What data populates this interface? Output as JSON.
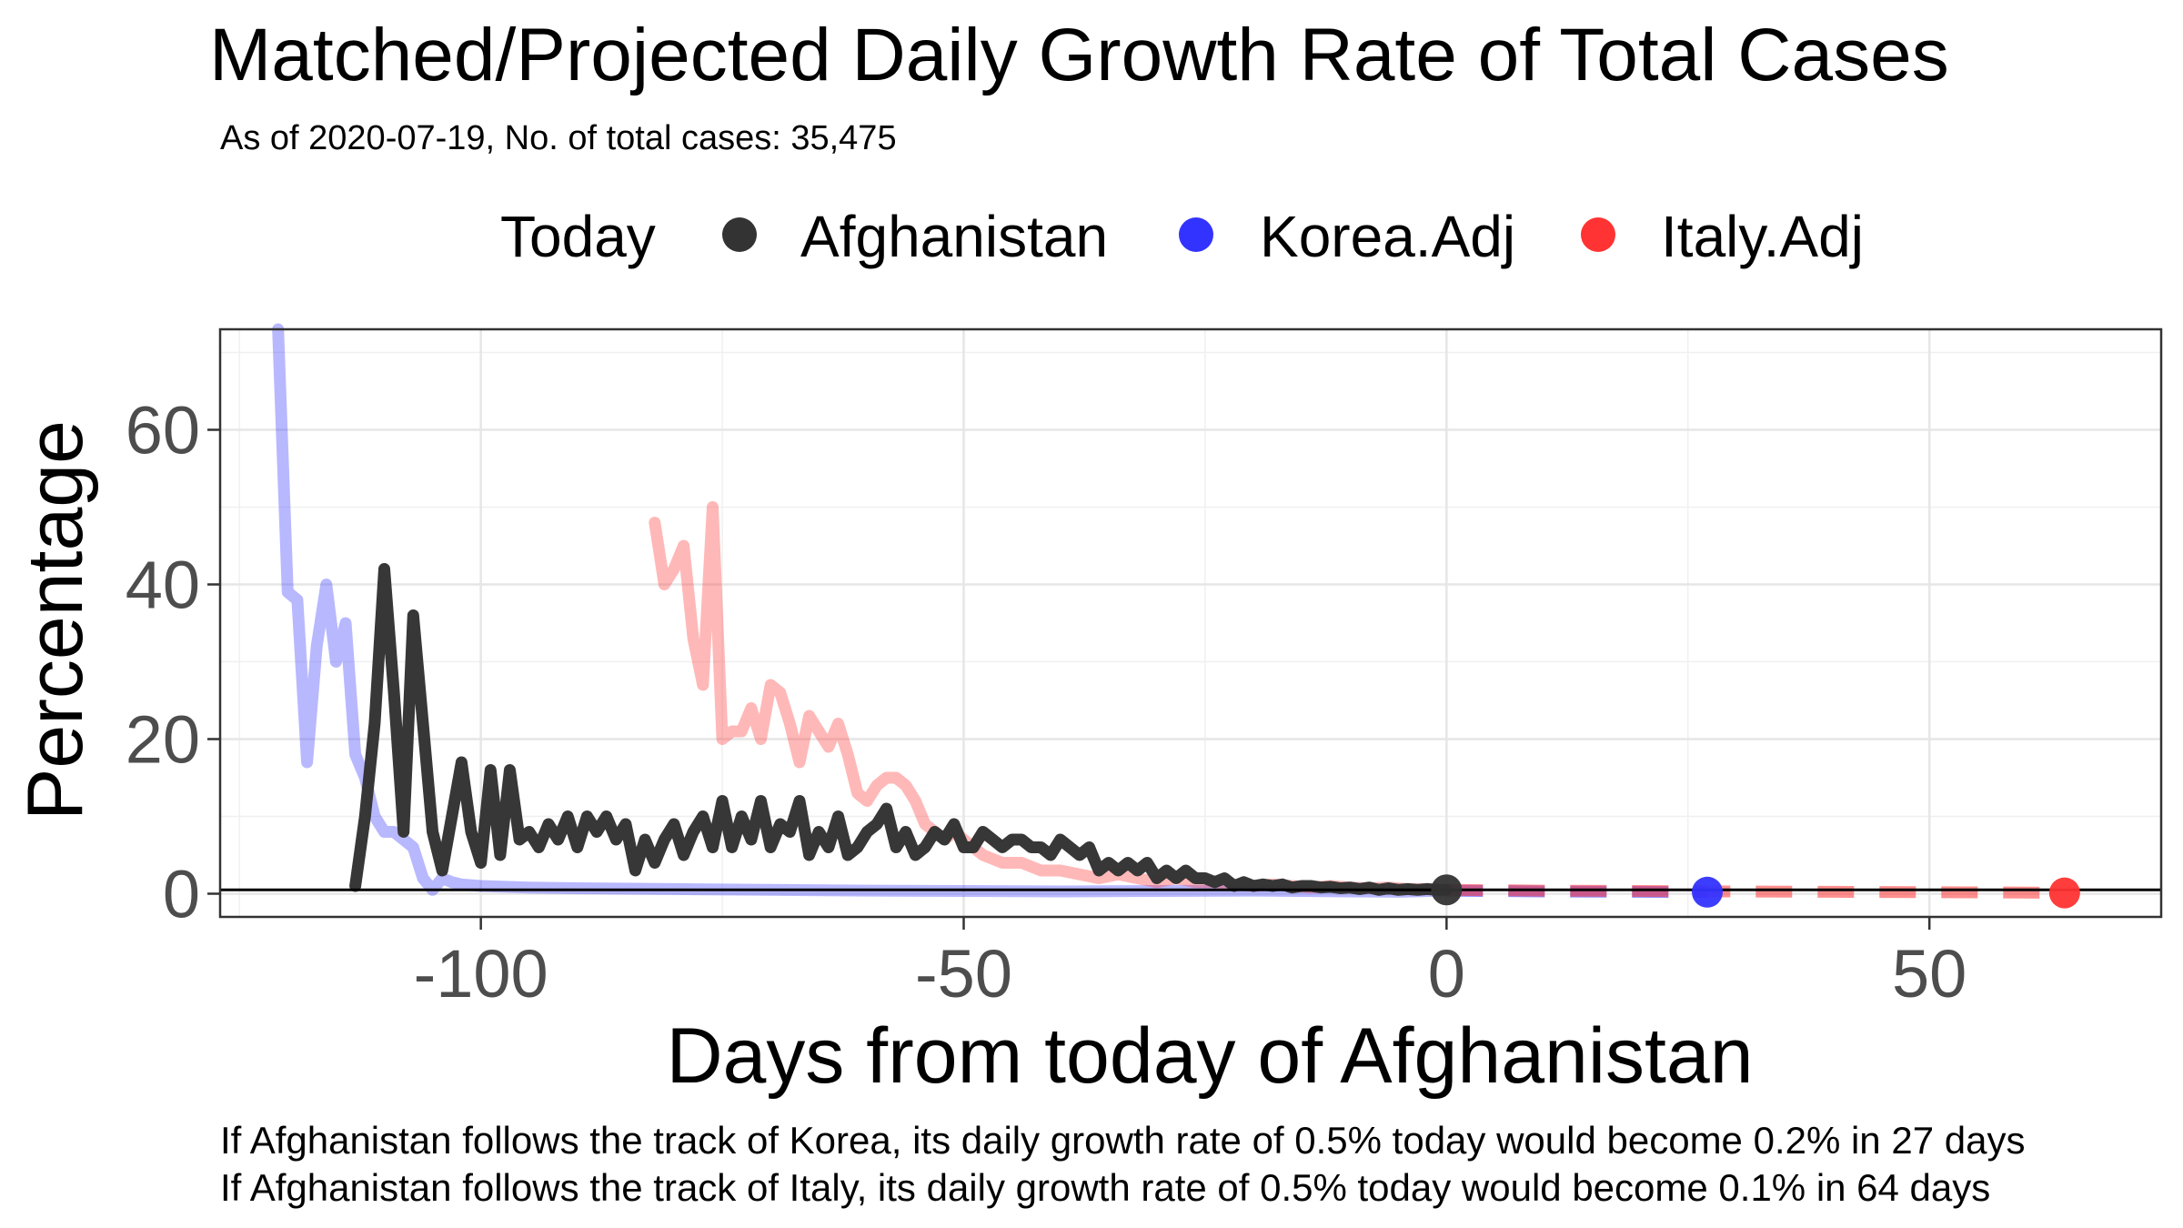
{
  "chart_data": {
    "type": "line",
    "title": "Matched/Projected Daily Growth Rate of Total Cases",
    "subtitle": "As of 2020-07-19, No. of total cases: 35,475",
    "xlabel": "Days from today of Afghanistan",
    "ylabel": "Percentage",
    "xlim": [
      -127,
      74
    ],
    "ylim": [
      -3,
      73
    ],
    "x_ticks": [
      -100,
      -50,
      0,
      50
    ],
    "x_tick_labels": [
      "-100",
      "-50",
      "0",
      "50"
    ],
    "y_ticks": [
      0,
      20,
      40,
      60
    ],
    "y_tick_labels": [
      "0",
      "20",
      "40",
      "60"
    ],
    "grid": true,
    "reference_line_y": 0.5,
    "legend": {
      "position": "top",
      "title": "Today",
      "entries": [
        {
          "name": "Afghanistan",
          "color": "#333333"
        },
        {
          "name": "Korea.Adj",
          "color": "#3333ff"
        },
        {
          "name": "Italy.Adj",
          "color": "#ff3333"
        }
      ]
    },
    "series": [
      {
        "name": "Korea.Adj",
        "color": "#3333ff",
        "points": [
          [
            -121,
            73
          ],
          [
            -120,
            39
          ],
          [
            -119,
            38
          ],
          [
            -118,
            17
          ],
          [
            -117,
            32
          ],
          [
            -116,
            40
          ],
          [
            -115,
            30
          ],
          [
            -114,
            35
          ],
          [
            -113,
            18
          ],
          [
            -112,
            15
          ],
          [
            -111,
            10
          ],
          [
            -110,
            8
          ],
          [
            -109,
            8
          ],
          [
            -108,
            7
          ],
          [
            -107,
            6
          ],
          [
            -106,
            2
          ],
          [
            -105,
            0.5
          ],
          [
            -104,
            2
          ],
          [
            -103,
            1.5
          ],
          [
            -102,
            1.2
          ],
          [
            -100,
            1
          ],
          [
            -95,
            0.8
          ],
          [
            -90,
            0.7
          ],
          [
            -80,
            0.6
          ],
          [
            -70,
            0.5
          ],
          [
            -60,
            0.4
          ],
          [
            -50,
            0.35
          ],
          [
            -40,
            0.3
          ],
          [
            -30,
            0.35
          ],
          [
            -20,
            0.4
          ],
          [
            -10,
            0.3
          ],
          [
            -5,
            0.25
          ],
          [
            0,
            0.4
          ],
          [
            10,
            0.3
          ],
          [
            20,
            0.25
          ],
          [
            27,
            0.2
          ]
        ],
        "projected_from_x": 0
      },
      {
        "name": "Italy.Adj",
        "color": "#ff3333",
        "points": [
          [
            -82,
            48
          ],
          [
            -81,
            40
          ],
          [
            -80,
            42
          ],
          [
            -79,
            45
          ],
          [
            -78,
            33
          ],
          [
            -77,
            27
          ],
          [
            -76,
            50
          ],
          [
            -75,
            20
          ],
          [
            -74,
            21
          ],
          [
            -73,
            21
          ],
          [
            -72,
            24
          ],
          [
            -71,
            20
          ],
          [
            -70,
            27
          ],
          [
            -69,
            26
          ],
          [
            -68,
            22
          ],
          [
            -67,
            17
          ],
          [
            -66,
            23
          ],
          [
            -65,
            21
          ],
          [
            -64,
            19
          ],
          [
            -63,
            22
          ],
          [
            -62,
            18
          ],
          [
            -61,
            13
          ],
          [
            -60,
            12
          ],
          [
            -59,
            14
          ],
          [
            -58,
            15
          ],
          [
            -57,
            15
          ],
          [
            -56,
            14
          ],
          [
            -55,
            12
          ],
          [
            -54,
            9
          ],
          [
            -53,
            8
          ],
          [
            -52,
            7
          ],
          [
            -51,
            8
          ],
          [
            -50,
            7
          ],
          [
            -48,
            5
          ],
          [
            -46,
            4
          ],
          [
            -44,
            4
          ],
          [
            -42,
            3
          ],
          [
            -40,
            3
          ],
          [
            -38,
            2.5
          ],
          [
            -36,
            2
          ],
          [
            -34,
            2.5
          ],
          [
            -32,
            2
          ],
          [
            -30,
            1.5
          ],
          [
            -28,
            2
          ],
          [
            -26,
            1.5
          ],
          [
            -24,
            1.5
          ],
          [
            -22,
            1.2
          ],
          [
            -20,
            1
          ],
          [
            -18,
            1.2
          ],
          [
            -16,
            1
          ],
          [
            -14,
            0.8
          ],
          [
            -12,
            1
          ],
          [
            -10,
            0.8
          ],
          [
            -8,
            0.7
          ],
          [
            -6,
            0.8
          ],
          [
            -4,
            0.6
          ],
          [
            -2,
            0.6
          ],
          [
            0,
            0.5
          ],
          [
            10,
            0.4
          ],
          [
            20,
            0.35
          ],
          [
            30,
            0.3
          ],
          [
            40,
            0.25
          ],
          [
            50,
            0.2
          ],
          [
            60,
            0.15
          ],
          [
            64,
            0.1
          ]
        ],
        "projected_from_x": 0
      },
      {
        "name": "Afghanistan",
        "color": "#333333",
        "points": [
          [
            -113,
            1
          ],
          [
            -112,
            10
          ],
          [
            -111,
            22
          ],
          [
            -110,
            42
          ],
          [
            -109,
            26
          ],
          [
            -108,
            8
          ],
          [
            -107,
            36
          ],
          [
            -106,
            22
          ],
          [
            -105,
            8
          ],
          [
            -104,
            3
          ],
          [
            -103,
            10
          ],
          [
            -102,
            17
          ],
          [
            -101,
            8
          ],
          [
            -100,
            4
          ],
          [
            -99,
            16
          ],
          [
            -98,
            5
          ],
          [
            -97,
            16
          ],
          [
            -96,
            7
          ],
          [
            -95,
            8
          ],
          [
            -94,
            6
          ],
          [
            -93,
            9
          ],
          [
            -92,
            7
          ],
          [
            -91,
            10
          ],
          [
            -90,
            6
          ],
          [
            -89,
            10
          ],
          [
            -88,
            8
          ],
          [
            -87,
            10
          ],
          [
            -86,
            7
          ],
          [
            -85,
            9
          ],
          [
            -84,
            3
          ],
          [
            -83,
            7
          ],
          [
            -82,
            4
          ],
          [
            -81,
            7
          ],
          [
            -80,
            9
          ],
          [
            -79,
            5
          ],
          [
            -78,
            8
          ],
          [
            -77,
            10
          ],
          [
            -76,
            6
          ],
          [
            -75,
            12
          ],
          [
            -74,
            6
          ],
          [
            -73,
            10
          ],
          [
            -72,
            7
          ],
          [
            -71,
            12
          ],
          [
            -70,
            6
          ],
          [
            -69,
            9
          ],
          [
            -68,
            8
          ],
          [
            -67,
            12
          ],
          [
            -66,
            5
          ],
          [
            -65,
            8
          ],
          [
            -64,
            6
          ],
          [
            -63,
            10
          ],
          [
            -62,
            5
          ],
          [
            -61,
            6
          ],
          [
            -60,
            8
          ],
          [
            -59,
            9
          ],
          [
            -58,
            11
          ],
          [
            -57,
            6
          ],
          [
            -56,
            8
          ],
          [
            -55,
            5
          ],
          [
            -54,
            6
          ],
          [
            -53,
            8
          ],
          [
            -52,
            7
          ],
          [
            -51,
            9
          ],
          [
            -50,
            6
          ],
          [
            -49,
            6
          ],
          [
            -48,
            8
          ],
          [
            -47,
            7
          ],
          [
            -46,
            6
          ],
          [
            -45,
            7
          ],
          [
            -44,
            7
          ],
          [
            -43,
            6
          ],
          [
            -42,
            6
          ],
          [
            -41,
            5
          ],
          [
            -40,
            7
          ],
          [
            -39,
            6
          ],
          [
            -38,
            5
          ],
          [
            -37,
            6
          ],
          [
            -36,
            3
          ],
          [
            -35,
            4
          ],
          [
            -34,
            3
          ],
          [
            -33,
            4
          ],
          [
            -32,
            3
          ],
          [
            -31,
            4
          ],
          [
            -30,
            2
          ],
          [
            -29,
            3
          ],
          [
            -28,
            2
          ],
          [
            -27,
            3
          ],
          [
            -26,
            2
          ],
          [
            -25,
            2
          ],
          [
            -24,
            1.5
          ],
          [
            -23,
            2
          ],
          [
            -22,
            1
          ],
          [
            -21,
            1.5
          ],
          [
            -20,
            1
          ],
          [
            -19,
            1.2
          ],
          [
            -18,
            1
          ],
          [
            -17,
            1.2
          ],
          [
            -16,
            0.8
          ],
          [
            -15,
            1
          ],
          [
            -14,
            1
          ],
          [
            -13,
            0.8
          ],
          [
            -12,
            0.9
          ],
          [
            -11,
            0.7
          ],
          [
            -10,
            0.8
          ],
          [
            -9,
            0.6
          ],
          [
            -8,
            0.8
          ],
          [
            -7,
            0.5
          ],
          [
            -6,
            0.7
          ],
          [
            -5,
            0.5
          ],
          [
            -4,
            0.6
          ],
          [
            -3,
            0.5
          ],
          [
            -2,
            0.6
          ],
          [
            -1,
            0.5
          ],
          [
            0,
            0.5
          ]
        ]
      }
    ],
    "today_points": [
      {
        "name": "Afghanistan",
        "x": 0,
        "y": 0.5,
        "color": "#333333"
      },
      {
        "name": "Korea.Adj",
        "x": 27,
        "y": 0.2,
        "color": "#3333ff"
      },
      {
        "name": "Italy.Adj",
        "x": 64,
        "y": 0.1,
        "color": "#ff3333"
      }
    ],
    "notes": [
      "If Afghanistan follows the track of Korea, its daily growth rate of 0.5% today would become 0.2% in 27 days",
      "If Afghanistan follows the track of Italy, its daily growth rate of 0.5% today would become 0.1% in 64 days"
    ]
  }
}
